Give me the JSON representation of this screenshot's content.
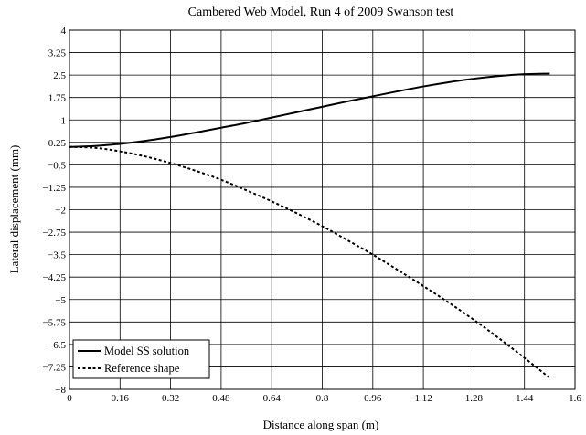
{
  "chart_data": {
    "type": "line",
    "title": "Cambered Web Model, Run 4 of 2009 Swanson test",
    "xlabel": "Distance along span (m)",
    "ylabel": "Lateral displacement (mm)",
    "xlim": [
      0,
      1.6
    ],
    "ylim": [
      -8,
      4
    ],
    "x_ticks": [
      0,
      0.16,
      0.32,
      0.48,
      0.64,
      0.8,
      0.96,
      1.12,
      1.28,
      1.44,
      1.6
    ],
    "y_ticks": [
      4,
      3.25,
      2.5,
      1.75,
      1,
      0.25,
      -0.5,
      -1.25,
      -2,
      -2.75,
      -3.5,
      -4.25,
      -5,
      -5.75,
      -6.5,
      -7.25,
      -8
    ],
    "x_tick_labels": [
      "0",
      "0.16",
      "0.32",
      "0.48",
      "0.64",
      "0.8",
      "0.96",
      "1.12",
      "1.28",
      "1.44",
      "1.6"
    ],
    "y_tick_labels": [
      "4",
      "3.25",
      "2.5",
      "1.75",
      "1",
      "0.25",
      "−0.5",
      "−1.25",
      "−2",
      "−2.75",
      "−3.5",
      "−4.25",
      "−5",
      "−5.75",
      "−6.5",
      "−7.25",
      "−8"
    ],
    "grid": true,
    "legend_position": "bottom-left",
    "series": [
      {
        "name": "Model SS solution",
        "style": "solid",
        "color": "#000000",
        "x": [
          0,
          0.08,
          0.16,
          0.24,
          0.32,
          0.4,
          0.48,
          0.56,
          0.64,
          0.72,
          0.8,
          0.88,
          0.96,
          1.04,
          1.12,
          1.2,
          1.28,
          1.36,
          1.44,
          1.52
        ],
        "y": [
          0.1,
          0.13,
          0.2,
          0.3,
          0.43,
          0.58,
          0.74,
          0.9,
          1.08,
          1.26,
          1.44,
          1.62,
          1.79,
          1.96,
          2.12,
          2.26,
          2.38,
          2.47,
          2.53,
          2.55
        ]
      },
      {
        "name": "Reference shape",
        "style": "dashed",
        "color": "#000000",
        "x": [
          0,
          0.08,
          0.16,
          0.24,
          0.32,
          0.4,
          0.48,
          0.56,
          0.64,
          0.72,
          0.8,
          0.88,
          0.96,
          1.04,
          1.12,
          1.2,
          1.28,
          1.36,
          1.44,
          1.52
        ],
        "y": [
          0.1,
          0.07,
          -0.05,
          -0.22,
          -0.44,
          -0.7,
          -1.0,
          -1.35,
          -1.72,
          -2.12,
          -2.55,
          -3.02,
          -3.5,
          -4.02,
          -4.55,
          -5.1,
          -5.68,
          -6.3,
          -6.95,
          -7.62
        ]
      }
    ]
  }
}
